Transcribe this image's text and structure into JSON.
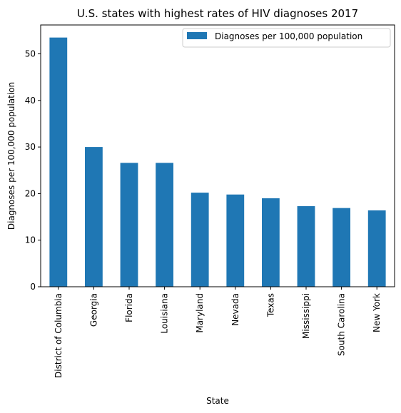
{
  "chart_data": {
    "type": "bar",
    "title": "U.S. states with highest rates of HIV diagnoses 2017",
    "xlabel": "State",
    "ylabel": "Diagnoses per 100,000 population",
    "categories": [
      "District of Columbia",
      "Georgia",
      "Florida",
      "Louisiana",
      "Maryland",
      "Nevada",
      "Texas",
      "Mississippi",
      "South Carolina",
      "New York"
    ],
    "series": [
      {
        "name": "Diagnoses per 100,000 population",
        "values": [
          53.5,
          30.0,
          26.6,
          26.6,
          20.2,
          19.8,
          19.0,
          17.3,
          16.9,
          16.4
        ],
        "color": "#1f77b4"
      }
    ],
    "ylim": [
      0,
      56.2
    ],
    "yticks": [
      0,
      10,
      20,
      30,
      40,
      50
    ],
    "grid": false,
    "legend_position": "top-right"
  }
}
